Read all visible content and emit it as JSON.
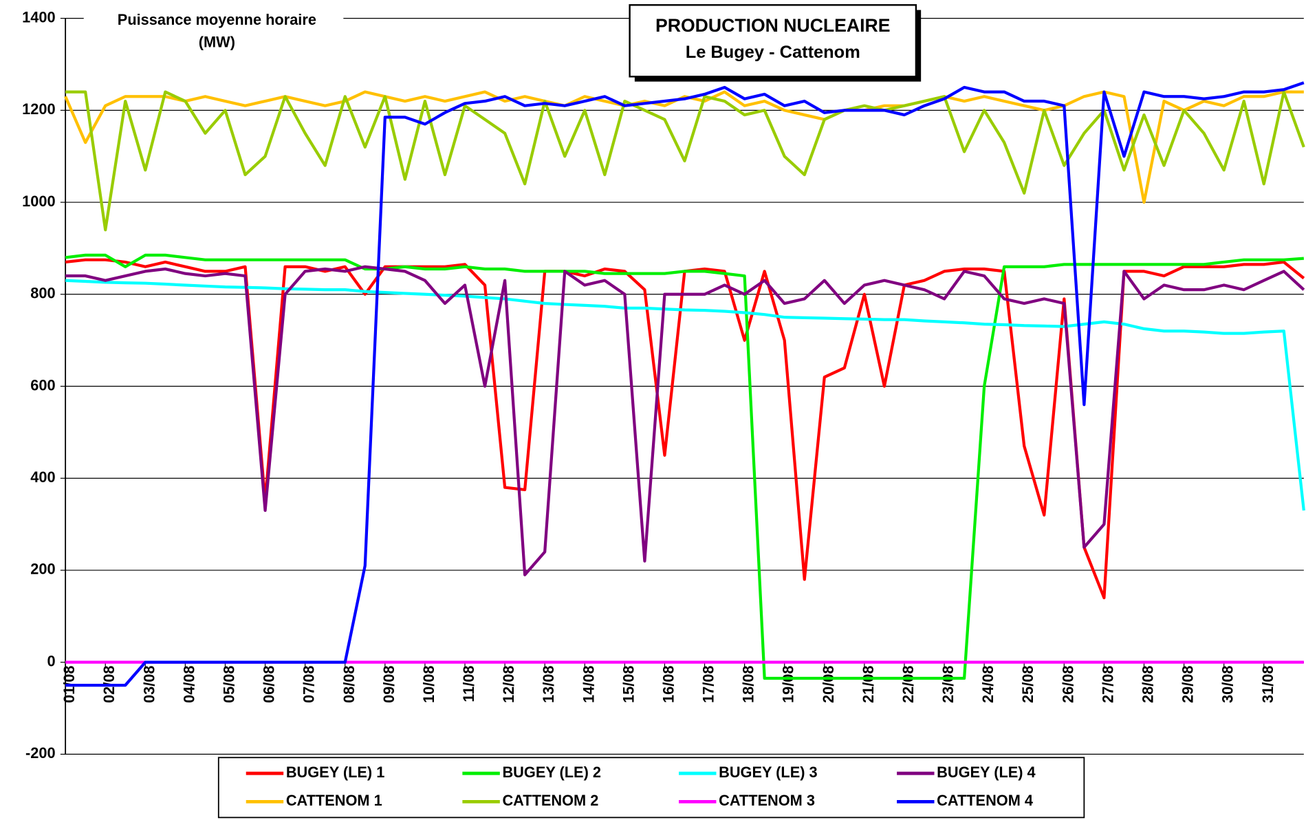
{
  "chart_data": {
    "type": "line",
    "title": [
      "PRODUCTION NUCLEAIRE",
      "Le Bugey - Cattenom"
    ],
    "y_label": [
      "Puissance moyenne horaire",
      "(MW)"
    ],
    "xlim": [
      1,
      32
    ],
    "ylim": [
      -200,
      1400
    ],
    "yticks": [
      -200,
      0,
      200,
      400,
      600,
      800,
      1000,
      1200,
      1400
    ],
    "grid": true,
    "xticks": [
      {
        "value": 1,
        "label": "01/08"
      },
      {
        "value": 2,
        "label": "02/08"
      },
      {
        "value": 3,
        "label": "03/08"
      },
      {
        "value": 4,
        "label": "04/08"
      },
      {
        "value": 5,
        "label": "05/08"
      },
      {
        "value": 6,
        "label": "06/08"
      },
      {
        "value": 7,
        "label": "07/08"
      },
      {
        "value": 8,
        "label": "08/08"
      },
      {
        "value": 9,
        "label": "09/08"
      },
      {
        "value": 10,
        "label": "10/08"
      },
      {
        "value": 11,
        "label": "11/08"
      },
      {
        "value": 12,
        "label": "12/08"
      },
      {
        "value": 13,
        "label": "13/08"
      },
      {
        "value": 14,
        "label": "14/08"
      },
      {
        "value": 15,
        "label": "15/08"
      },
      {
        "value": 16,
        "label": "16/08"
      },
      {
        "value": 17,
        "label": "17/08"
      },
      {
        "value": 18,
        "label": "18/08"
      },
      {
        "value": 19,
        "label": "19/08"
      },
      {
        "value": 20,
        "label": "20/08"
      },
      {
        "value": 21,
        "label": "21/08"
      },
      {
        "value": 22,
        "label": "22/08"
      },
      {
        "value": 23,
        "label": "23/08"
      },
      {
        "value": 24,
        "label": "24/08"
      },
      {
        "value": 25,
        "label": "25/08"
      },
      {
        "value": 26,
        "label": "26/08"
      },
      {
        "value": 27,
        "label": "27/08"
      },
      {
        "value": 28,
        "label": "28/08"
      },
      {
        "value": 29,
        "label": "29/08"
      },
      {
        "value": 30,
        "label": "30/08"
      },
      {
        "value": 31,
        "label": "31/08"
      }
    ],
    "x": [
      1,
      1.5,
      2,
      2.5,
      3,
      3.5,
      4,
      4.5,
      5,
      5.5,
      6,
      6.5,
      7,
      7.5,
      8,
      8.5,
      9,
      9.5,
      10,
      10.5,
      11,
      11.5,
      12,
      12.5,
      13,
      13.5,
      14,
      14.5,
      15,
      15.5,
      16,
      16.5,
      17,
      17.5,
      18,
      18.5,
      19,
      19.5,
      20,
      20.5,
      21,
      21.5,
      22,
      22.5,
      23,
      23.5,
      24,
      24.5,
      25,
      25.5,
      26,
      26.5,
      27,
      27.5,
      28,
      28.5,
      29,
      29.5,
      30,
      30.5,
      31,
      31.5,
      32
    ],
    "series": [
      {
        "name": "BUGEY (LE) 1",
        "color": "#ff0000",
        "values": [
          870,
          875,
          875,
          870,
          860,
          870,
          860,
          850,
          850,
          860,
          350,
          860,
          860,
          850,
          860,
          800,
          860,
          860,
          860,
          860,
          865,
          820,
          380,
          375,
          850,
          850,
          840,
          855,
          850,
          810,
          450,
          850,
          855,
          850,
          700,
          850,
          700,
          180,
          620,
          640,
          800,
          600,
          820,
          830,
          850,
          855,
          855,
          850,
          470,
          320,
          790,
          250,
          140,
          850,
          850,
          840,
          860,
          860,
          860,
          865,
          865,
          870,
          835
        ]
      },
      {
        "name": "BUGEY (LE) 2",
        "color": "#00ee00",
        "values": [
          880,
          885,
          885,
          860,
          885,
          885,
          880,
          875,
          875,
          875,
          875,
          875,
          875,
          875,
          875,
          855,
          855,
          860,
          855,
          855,
          860,
          855,
          855,
          850,
          850,
          850,
          850,
          845,
          845,
          845,
          845,
          850,
          850,
          845,
          840,
          -35,
          -35,
          -35,
          -35,
          -35,
          -35,
          -35,
          -35,
          -35,
          -35,
          -35,
          600,
          860,
          860,
          860,
          865,
          865,
          865,
          865,
          865,
          865,
          865,
          865,
          870,
          875,
          875,
          875,
          878
        ]
      },
      {
        "name": "BUGEY (LE) 3",
        "color": "#00ffff",
        "values": [
          830,
          828,
          826,
          825,
          824,
          822,
          820,
          818,
          816,
          815,
          814,
          812,
          811,
          810,
          810,
          806,
          804,
          802,
          800,
          798,
          796,
          793,
          790,
          785,
          780,
          778,
          776,
          774,
          770,
          770,
          768,
          766,
          765,
          763,
          760,
          756,
          750,
          749,
          748,
          747,
          746,
          745,
          745,
          742,
          740,
          738,
          735,
          734,
          732,
          731,
          730,
          735,
          740,
          735,
          725,
          720,
          720,
          718,
          715,
          715,
          718,
          720,
          330
        ]
      },
      {
        "name": "BUGEY (LE) 4",
        "color": "#800080",
        "values": [
          840,
          840,
          830,
          840,
          850,
          855,
          845,
          840,
          845,
          840,
          330,
          800,
          850,
          855,
          850,
          860,
          855,
          850,
          830,
          780,
          820,
          600,
          830,
          190,
          240,
          850,
          820,
          830,
          800,
          220,
          800,
          800,
          800,
          820,
          800,
          830,
          780,
          790,
          830,
          780,
          820,
          830,
          820,
          810,
          790,
          850,
          840,
          790,
          780,
          790,
          780,
          250,
          300,
          850,
          790,
          820,
          810,
          810,
          820,
          810,
          830,
          850,
          810
        ]
      },
      {
        "name": "CATTENOM 1",
        "color": "#ffc000",
        "values": [
          1230,
          1130,
          1210,
          1230,
          1230,
          1230,
          1220,
          1230,
          1220,
          1210,
          1220,
          1230,
          1220,
          1210,
          1220,
          1240,
          1230,
          1220,
          1230,
          1220,
          1230,
          1240,
          1220,
          1230,
          1220,
          1210,
          1230,
          1220,
          1210,
          1220,
          1210,
          1230,
          1220,
          1240,
          1210,
          1220,
          1200,
          1190,
          1180,
          1200,
          1200,
          1210,
          1210,
          1220,
          1230,
          1220,
          1230,
          1220,
          1210,
          1200,
          1210,
          1230,
          1240,
          1230,
          1000,
          1220,
          1200,
          1220,
          1210,
          1230,
          1230,
          1240,
          1240
        ]
      },
      {
        "name": "CATTENOM 2",
        "color": "#99cc00",
        "values": [
          1240,
          1240,
          940,
          1220,
          1070,
          1240,
          1220,
          1150,
          1200,
          1060,
          1100,
          1230,
          1150,
          1080,
          1230,
          1120,
          1230,
          1050,
          1220,
          1060,
          1210,
          1180,
          1150,
          1040,
          1220,
          1100,
          1200,
          1060,
          1220,
          1200,
          1180,
          1090,
          1230,
          1220,
          1190,
          1200,
          1100,
          1060,
          1180,
          1200,
          1210,
          1200,
          1210,
          1220,
          1230,
          1110,
          1200,
          1130,
          1020,
          1200,
          1080,
          1150,
          1200,
          1070,
          1190,
          1080,
          1200,
          1150,
          1070,
          1220,
          1040,
          1240,
          1120
        ]
      },
      {
        "name": "CATTENOM 3",
        "color": "#ff00ff",
        "values": [
          0,
          0,
          0,
          0,
          0,
          0,
          0,
          0,
          0,
          0,
          0,
          0,
          0,
          0,
          0,
          0,
          0,
          0,
          0,
          0,
          0,
          0,
          0,
          0,
          0,
          0,
          0,
          0,
          0,
          0,
          0,
          0,
          0,
          0,
          0,
          0,
          0,
          0,
          0,
          0,
          0,
          0,
          0,
          0,
          0,
          0,
          0,
          0,
          0,
          0,
          0,
          0,
          0,
          0,
          0,
          0,
          0,
          0,
          0,
          0,
          0,
          0,
          0
        ]
      },
      {
        "name": "CATTENOM 4",
        "color": "#0000ff",
        "values": [
          -50,
          -50,
          -50,
          -50,
          0,
          0,
          0,
          0,
          0,
          0,
          0,
          0,
          0,
          0,
          0,
          210,
          1185,
          1185,
          1170,
          1195,
          1215,
          1220,
          1230,
          1210,
          1215,
          1210,
          1220,
          1230,
          1210,
          1215,
          1220,
          1225,
          1235,
          1250,
          1225,
          1235,
          1210,
          1220,
          1195,
          1200,
          1200,
          1200,
          1190,
          1210,
          1225,
          1250,
          1240,
          1240,
          1220,
          1220,
          1210,
          560,
          1240,
          1100,
          1240,
          1230,
          1230,
          1225,
          1230,
          1240,
          1240,
          1245,
          1260
        ]
      }
    ]
  }
}
